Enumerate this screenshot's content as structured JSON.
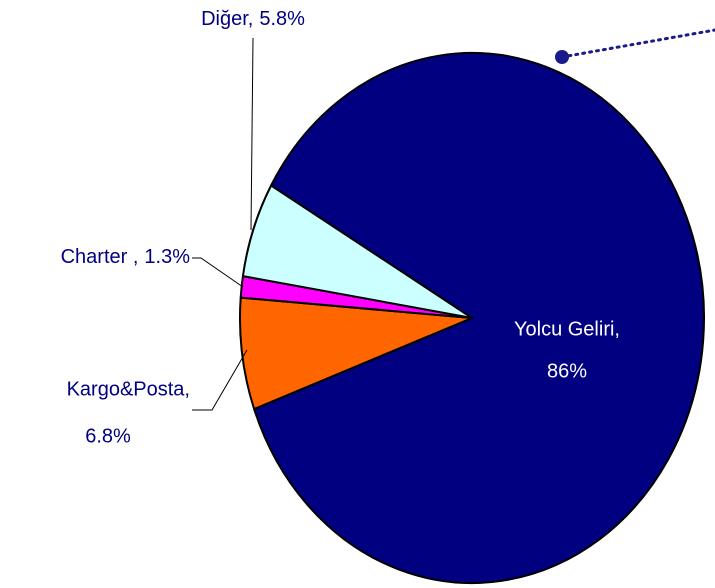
{
  "chart_data": {
    "type": "pie",
    "categories": [
      "Yolcu Geliri,",
      "Kargo&Posta,",
      "Charter ,",
      "Diğer,"
    ],
    "values": [
      86,
      6.8,
      1.3,
      5.8
    ],
    "value_labels": [
      "86%",
      "6.8%",
      "1.3%",
      "5.8%"
    ],
    "colors": [
      "#000080",
      "#ff6600",
      "#ff00ff",
      "#ccffff"
    ]
  }
}
